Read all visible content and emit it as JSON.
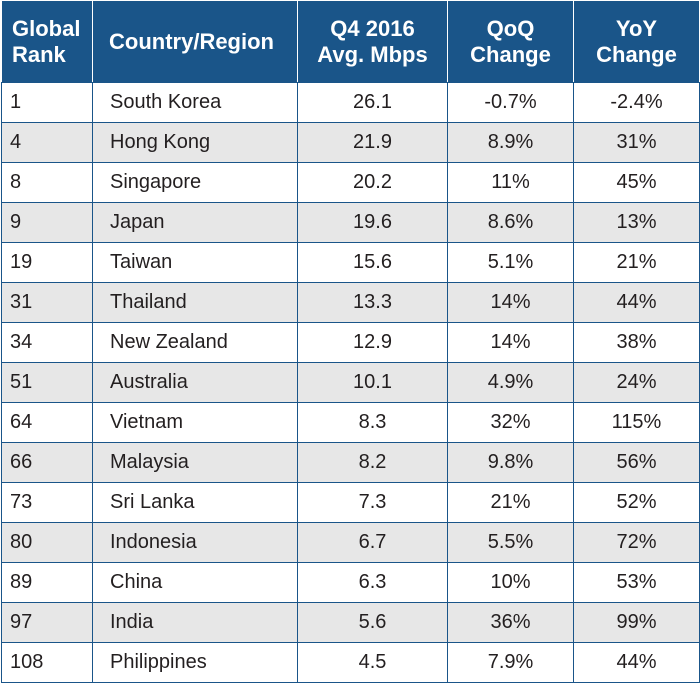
{
  "headers": {
    "rank": [
      "Global",
      "Rank"
    ],
    "country": "Country/Region",
    "speed": [
      "Q4 2016",
      "Avg. Mbps"
    ],
    "qoq": [
      "QoQ",
      "Change"
    ],
    "yoy": [
      "YoY",
      "Change"
    ]
  },
  "rows": [
    {
      "rank": "1",
      "country": "South Korea",
      "speed": "26.1",
      "qoq": "-0.7%",
      "yoy": "-2.4%"
    },
    {
      "rank": "4",
      "country": "Hong Kong",
      "speed": "21.9",
      "qoq": "8.9%",
      "yoy": "31%"
    },
    {
      "rank": "8",
      "country": "Singapore",
      "speed": "20.2",
      "qoq": "11%",
      "yoy": "45%"
    },
    {
      "rank": "9",
      "country": "Japan",
      "speed": "19.6",
      "qoq": "8.6%",
      "yoy": "13%"
    },
    {
      "rank": "19",
      "country": "Taiwan",
      "speed": "15.6",
      "qoq": "5.1%",
      "yoy": "21%"
    },
    {
      "rank": "31",
      "country": "Thailand",
      "speed": "13.3",
      "qoq": "14%",
      "yoy": "44%"
    },
    {
      "rank": "34",
      "country": "New Zealand",
      "speed": "12.9",
      "qoq": "14%",
      "yoy": "38%"
    },
    {
      "rank": "51",
      "country": "Australia",
      "speed": "10.1",
      "qoq": "4.9%",
      "yoy": "24%"
    },
    {
      "rank": "64",
      "country": "Vietnam",
      "speed": "8.3",
      "qoq": "32%",
      "yoy": "115%"
    },
    {
      "rank": "66",
      "country": "Malaysia",
      "speed": "8.2",
      "qoq": "9.8%",
      "yoy": "56%"
    },
    {
      "rank": "73",
      "country": "Sri Lanka",
      "speed": "7.3",
      "qoq": "21%",
      "yoy": "52%"
    },
    {
      "rank": "80",
      "country": "Indonesia",
      "speed": "6.7",
      "qoq": "5.5%",
      "yoy": "72%"
    },
    {
      "rank": "89",
      "country": "China",
      "speed": "6.3",
      "qoq": "10%",
      "yoy": "53%"
    },
    {
      "rank": "97",
      "country": "India",
      "speed": "5.6",
      "qoq": "36%",
      "yoy": "99%"
    },
    {
      "rank": "108",
      "country": "Philippines",
      "speed": "4.5",
      "qoq": "7.9%",
      "yoy": "44%"
    }
  ]
}
